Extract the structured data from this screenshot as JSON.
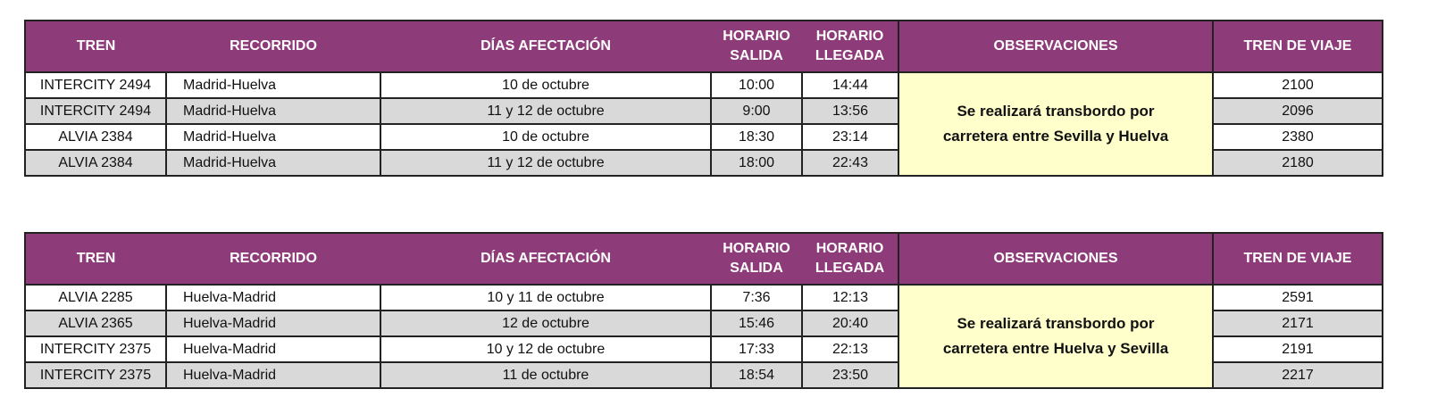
{
  "headers": {
    "tren": "TREN",
    "recorrido": "RECORRIDO",
    "dias": "DÍAS AFECTACIÓN",
    "salida1": "HORARIO",
    "salida2": "SALIDA",
    "llegada1": "HORARIO",
    "llegada2": "LLEGADA",
    "obs": "OBSERVACIONES",
    "viaje": "TREN DE VIAJE"
  },
  "tables": [
    {
      "observacion_1": "Se realizará transbordo por",
      "observacion_2": "carretera entre Sevilla y Huelva",
      "rows": [
        {
          "tren": "INTERCITY 2494",
          "recorrido": "Madrid-Huelva",
          "dias": "10 de octubre",
          "salida": "10:00",
          "llegada": "14:44",
          "viaje": "2100"
        },
        {
          "tren": "INTERCITY 2494",
          "recorrido": "Madrid-Huelva",
          "dias": "11 y 12 de octubre",
          "salida": "9:00",
          "llegada": "13:56",
          "viaje": "2096"
        },
        {
          "tren": "ALVIA 2384",
          "recorrido": "Madrid-Huelva",
          "dias": "10 de octubre",
          "salida": "18:30",
          "llegada": "23:14",
          "viaje": "2380"
        },
        {
          "tren": "ALVIA 2384",
          "recorrido": "Madrid-Huelva",
          "dias": "11 y 12 de octubre",
          "salida": "18:00",
          "llegada": "22:43",
          "viaje": "2180"
        }
      ]
    },
    {
      "observacion_1": "Se realizará transbordo por",
      "observacion_2": "carretera entre Huelva y Sevilla",
      "rows": [
        {
          "tren": "ALVIA 2285",
          "recorrido": "Huelva-Madrid",
          "dias": "10 y 11 de octubre",
          "salida": "7:36",
          "llegada": "12:13",
          "viaje": "2591"
        },
        {
          "tren": "ALVIA 2365",
          "recorrido": "Huelva-Madrid",
          "dias": "12 de octubre",
          "salida": "15:46",
          "llegada": "20:40",
          "viaje": "2171"
        },
        {
          "tren": "INTERCITY 2375",
          "recorrido": "Huelva-Madrid",
          "dias": "10 y 12 de octubre",
          "salida": "17:33",
          "llegada": "22:13",
          "viaje": "2191"
        },
        {
          "tren": "INTERCITY 2375",
          "recorrido": "Huelva-Madrid",
          "dias": "11 de octubre",
          "salida": "18:54",
          "llegada": "23:50",
          "viaje": "2217"
        }
      ]
    }
  ],
  "colors": {
    "header": "#8e3b79",
    "observaciones": "#ffffcc",
    "alt_row": "#d9d9d9"
  }
}
